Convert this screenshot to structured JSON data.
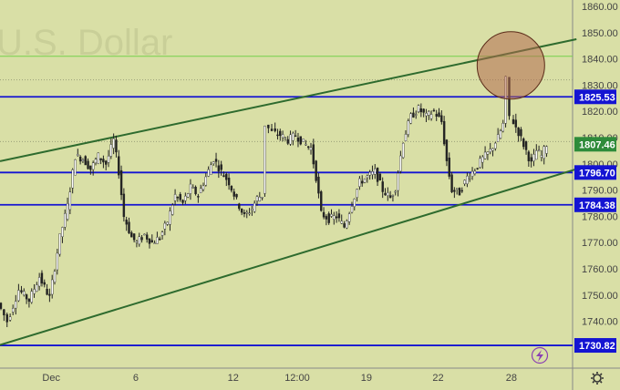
{
  "watermark": "U.S. Dollar",
  "colors": {
    "background": "#d9dfa6",
    "candle": "#ffffff",
    "wick": "#222222",
    "level_line": "#1414d2",
    "channel_line": "#2e6b2e",
    "ref_line": "#74d14a",
    "tag_blue": "#1414d2",
    "tag_green": "#2e8b3a",
    "circle_fill": "#b36a4f"
  },
  "icons": {
    "lightning": "lightning-icon",
    "settings": "gear-icon"
  },
  "chart_data": {
    "type": "candlestick",
    "title": "",
    "xlabel": "",
    "ylabel": "",
    "ylim": [
      1724,
      1863
    ],
    "y_ticks": [
      1860.0,
      1850.0,
      1840.0,
      1830.0,
      1820.0,
      1810.0,
      1800.0,
      1790.0,
      1780.0,
      1770.0,
      1760.0,
      1750.0,
      1740.0
    ],
    "y_tick_labels": [
      "1860.00",
      "1850.00",
      "1840.00",
      "1830.00",
      "1820.00",
      "1810.00",
      "1800.00",
      "1790.00",
      "1780.00",
      "1770.00",
      "1760.00",
      "1750.00",
      "1740.00"
    ],
    "x_ticks": [
      {
        "label": "Dec",
        "t": 0.1
      },
      {
        "label": "6",
        "t": 0.265
      },
      {
        "label": "12",
        "t": 0.455
      },
      {
        "label": "12:00",
        "t": 0.58
      },
      {
        "label": "19",
        "t": 0.715
      },
      {
        "label": "22",
        "t": 0.855
      },
      {
        "label": "28",
        "t": 0.998
      }
    ],
    "x_range": [
      0,
      1.125
    ],
    "price_series": [
      [
        0,
        1747.0
      ],
      [
        0.018,
        1740.0
      ],
      [
        0.04,
        1752.0
      ],
      [
        0.06,
        1748.0
      ],
      [
        0.08,
        1757.0
      ],
      [
        0.1,
        1749.0
      ],
      [
        0.12,
        1772.0
      ],
      [
        0.135,
        1784.0
      ],
      [
        0.15,
        1803.0
      ],
      [
        0.165,
        1802.0
      ],
      [
        0.18,
        1798.0
      ],
      [
        0.195,
        1803.0
      ],
      [
        0.21,
        1800.0
      ],
      [
        0.225,
        1809.0
      ],
      [
        0.235,
        1797.0
      ],
      [
        0.245,
        1780.0
      ],
      [
        0.26,
        1772.0
      ],
      [
        0.27,
        1770.0
      ],
      [
        0.285,
        1773.0
      ],
      [
        0.3,
        1770.0
      ],
      [
        0.315,
        1772.0
      ],
      [
        0.33,
        1778.0
      ],
      [
        0.345,
        1788.0
      ],
      [
        0.36,
        1785.0
      ],
      [
        0.375,
        1791.0
      ],
      [
        0.39,
        1788.0
      ],
      [
        0.405,
        1795.0
      ],
      [
        0.42,
        1802.0
      ],
      [
        0.435,
        1797.0
      ],
      [
        0.45,
        1793.0
      ],
      [
        0.465,
        1786.0
      ],
      [
        0.48,
        1780.0
      ],
      [
        0.495,
        1783.0
      ],
      [
        0.505,
        1787.0
      ],
      [
        0.515,
        1788.0
      ],
      [
        0.522,
        1815.0
      ],
      [
        0.535,
        1812.0
      ],
      [
        0.55,
        1811.0
      ],
      [
        0.565,
        1809.0
      ],
      [
        0.58,
        1811.0
      ],
      [
        0.595,
        1808.0
      ],
      [
        0.61,
        1806.0
      ],
      [
        0.62,
        1795.0
      ],
      [
        0.63,
        1781.0
      ],
      [
        0.645,
        1779.0
      ],
      [
        0.66,
        1780.0
      ],
      [
        0.675,
        1776.0
      ],
      [
        0.69,
        1785.0
      ],
      [
        0.705,
        1793.0
      ],
      [
        0.72,
        1795.0
      ],
      [
        0.735,
        1797.0
      ],
      [
        0.75,
        1790.0
      ],
      [
        0.765,
        1787.0
      ],
      [
        0.775,
        1791.0
      ],
      [
        0.79,
        1809.0
      ],
      [
        0.805,
        1818.0
      ],
      [
        0.82,
        1821.0
      ],
      [
        0.835,
        1818.0
      ],
      [
        0.85,
        1820.0
      ],
      [
        0.865,
        1816.0
      ],
      [
        0.875,
        1801.0
      ],
      [
        0.885,
        1790.0
      ],
      [
        0.9,
        1789.0
      ],
      [
        0.915,
        1795.0
      ],
      [
        0.93,
        1798.0
      ],
      [
        0.945,
        1802.0
      ],
      [
        0.96,
        1805.0
      ],
      [
        0.975,
        1810.0
      ],
      [
        0.985,
        1815.0
      ],
      [
        0.992,
        1832.0
      ],
      [
        1.0,
        1818.0
      ],
      [
        1.015,
        1812.0
      ],
      [
        1.03,
        1805.0
      ],
      [
        1.04,
        1800.0
      ],
      [
        1.05,
        1805.0
      ],
      [
        1.06,
        1803.0
      ],
      [
        1.07,
        1807.46
      ]
    ],
    "horizontal_levels": [
      {
        "value": 1825.53,
        "label": "1825.53",
        "kind": "level"
      },
      {
        "value": 1796.7,
        "label": "1796.70",
        "kind": "level"
      },
      {
        "value": 1784.38,
        "label": "1784.38",
        "kind": "level"
      },
      {
        "value": 1730.82,
        "label": "1730.82",
        "kind": "level"
      },
      {
        "value": 1841.0,
        "label": "",
        "kind": "ref"
      }
    ],
    "last_price": {
      "value": 1807.46,
      "label": "1807.46"
    },
    "channel_lines": [
      {
        "name": "upper",
        "points": [
          [
            0,
            1801.0
          ],
          [
            1.125,
            1847.5
          ]
        ]
      },
      {
        "name": "lower",
        "points": [
          [
            0,
            1731.0
          ],
          [
            1.125,
            1798.0
          ]
        ]
      }
    ],
    "highlight_circle": {
      "x": 0.997,
      "y": 1837.5
    }
  }
}
